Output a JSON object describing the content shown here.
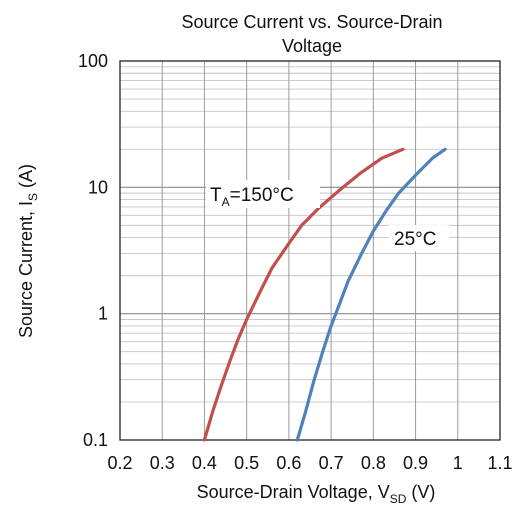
{
  "chart_data": {
    "type": "line",
    "title_line1": "Source Current vs. Source-Drain",
    "title_line2": "Voltage",
    "xlabel_main": "Source-Drain Voltage, V",
    "xlabel_sub": "SD",
    "xlabel_unit": " (V)",
    "ylabel_main": "Source Current, I",
    "ylabel_sub": "S",
    "ylabel_unit": " (A)",
    "x_ticks": [
      "0.2",
      "0.3",
      "0.4",
      "0.5",
      "0.6",
      "0.7",
      "0.8",
      "0.9",
      "1",
      "1.1"
    ],
    "y_ticks": [
      "0.1",
      "1",
      "10",
      "100"
    ],
    "xlim": [
      0.2,
      1.1
    ],
    "ylim": [
      0.1,
      100
    ],
    "y_scale": "log",
    "grid": true,
    "series": [
      {
        "color": "#c0504d",
        "x": [
          0.4,
          0.42,
          0.44,
          0.46,
          0.48,
          0.5,
          0.53,
          0.56,
          0.6,
          0.63,
          0.67,
          0.72,
          0.77,
          0.82,
          0.87
        ],
        "y": [
          0.1,
          0.17,
          0.27,
          0.42,
          0.63,
          0.9,
          1.45,
          2.3,
          3.6,
          5.0,
          6.8,
          9.5,
          13.0,
          17.0,
          20.0
        ]
      },
      {
        "color": "#4f81bd",
        "x": [
          0.62,
          0.64,
          0.66,
          0.68,
          0.7,
          0.72,
          0.74,
          0.77,
          0.8,
          0.83,
          0.86,
          0.9,
          0.94,
          0.97
        ],
        "y": [
          0.1,
          0.17,
          0.3,
          0.5,
          0.8,
          1.2,
          1.8,
          2.9,
          4.5,
          6.5,
          9.0,
          12.5,
          17.0,
          20.0
        ]
      }
    ],
    "annotations": [
      {
        "main": "T",
        "sub": "A",
        "rest": "=150°C"
      },
      {
        "main": "25°C",
        "sub": "",
        "rest": ""
      }
    ]
  }
}
